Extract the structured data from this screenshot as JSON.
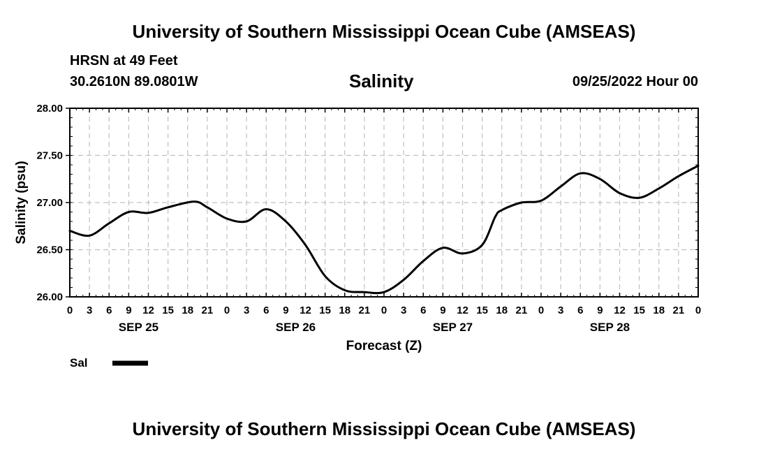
{
  "header": {
    "title": "University of Southern Mississippi Ocean Cube (AMSEAS)",
    "station": "HRSN at 49 Feet",
    "coordinates": "30.2610N  89.0801W",
    "timestamp": "09/25/2022 Hour 00"
  },
  "footer": {
    "title": "University of Southern Mississippi Ocean Cube (AMSEAS)"
  },
  "chart_data": {
    "type": "line",
    "title": "Salinity",
    "xlabel": "Forecast (Z)",
    "ylabel": "Salinity (psu)",
    "ylim": [
      26.0,
      28.0
    ],
    "xlim": [
      0,
      96
    ],
    "grid": true,
    "yticks": [
      "26.00",
      "26.50",
      "27.00",
      "27.50",
      "28.00"
    ],
    "xtick_labels": [
      "0",
      "3",
      "6",
      "9",
      "12",
      "15",
      "18",
      "21",
      "0",
      "3",
      "6",
      "9",
      "12",
      "15",
      "18",
      "21",
      "0",
      "3",
      "6",
      "9",
      "12",
      "15",
      "18",
      "21",
      "0",
      "3",
      "6",
      "9",
      "12",
      "15",
      "18",
      "21",
      "0"
    ],
    "day_labels": [
      "SEP 25",
      "SEP 26",
      "SEP 27",
      "SEP 28"
    ],
    "legend": {
      "label": "Sal",
      "placement": "bottom-left"
    },
    "series": [
      {
        "name": "Sal",
        "x": [
          0,
          3,
          6,
          9,
          12,
          15,
          19,
          21,
          24,
          27,
          30,
          33,
          36,
          39,
          42,
          45,
          48,
          51,
          54,
          57,
          60,
          63,
          65,
          66,
          69,
          72,
          75,
          78,
          81,
          84,
          87,
          90,
          93,
          96
        ],
        "y": [
          26.7,
          26.65,
          26.78,
          26.9,
          26.89,
          26.95,
          27.01,
          26.95,
          26.83,
          26.8,
          26.93,
          26.8,
          26.55,
          26.22,
          26.07,
          26.05,
          26.05,
          26.18,
          26.38,
          26.52,
          26.46,
          26.55,
          26.85,
          26.92,
          27.0,
          27.02,
          27.17,
          27.31,
          27.25,
          27.1,
          27.05,
          27.15,
          27.28,
          27.39
        ]
      }
    ]
  }
}
